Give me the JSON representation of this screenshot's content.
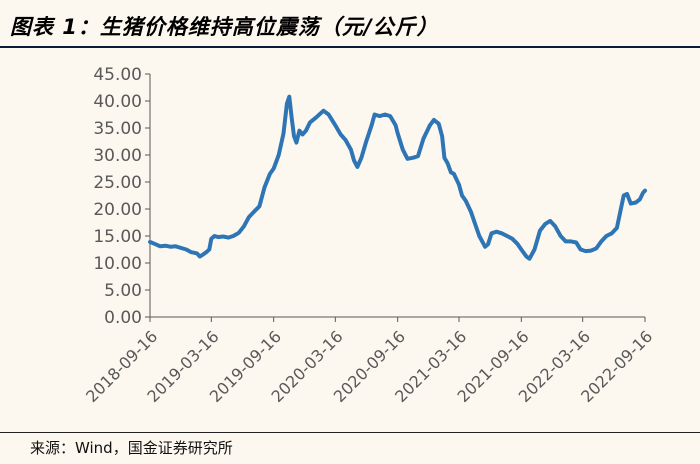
{
  "header": {
    "title": "图表 1：生猪价格维持高位震荡（元/公斤）"
  },
  "footer": {
    "source": "来源：Wind，国金证券研究所"
  },
  "colors": {
    "line": "#2e75b6",
    "axis": "#595959",
    "tick_text": "#595959"
  },
  "chart_data": {
    "type": "line",
    "title": "生猪价格维持高位震荡（元/公斤）",
    "xlabel": "",
    "ylabel": "",
    "ylim": [
      0,
      45
    ],
    "yticks": [
      "0.00",
      "5.00",
      "10.00",
      "15.00",
      "20.00",
      "25.00",
      "30.00",
      "35.00",
      "40.00",
      "45.00"
    ],
    "xticks": [
      "2018-09-16",
      "2019-03-16",
      "2019-09-16",
      "2020-03-16",
      "2020-09-16",
      "2021-03-16",
      "2021-09-16",
      "2022-03-16",
      "2022-09-16"
    ],
    "grid": false,
    "legend": "none",
    "series": [
      {
        "points": [
          [
            "2018-09-16",
            13.9
          ],
          [
            "2018-10-01",
            13.5
          ],
          [
            "2018-10-16",
            13.1
          ],
          [
            "2018-11-01",
            13.2
          ],
          [
            "2018-11-16",
            13.0
          ],
          [
            "2018-12-01",
            13.1
          ],
          [
            "2018-12-16",
            12.8
          ],
          [
            "2019-01-01",
            12.5
          ],
          [
            "2019-01-16",
            12.0
          ],
          [
            "2019-02-01",
            11.8
          ],
          [
            "2019-02-10",
            11.2
          ],
          [
            "2019-02-20",
            11.6
          ],
          [
            "2019-03-01",
            12.0
          ],
          [
            "2019-03-10",
            12.5
          ],
          [
            "2019-03-16",
            14.5
          ],
          [
            "2019-03-25",
            15.0
          ],
          [
            "2019-04-05",
            14.8
          ],
          [
            "2019-04-20",
            14.9
          ],
          [
            "2019-05-05",
            14.7
          ],
          [
            "2019-05-20",
            15.0
          ],
          [
            "2019-06-05",
            15.6
          ],
          [
            "2019-06-20",
            16.8
          ],
          [
            "2019-07-05",
            18.5
          ],
          [
            "2019-07-20",
            19.5
          ],
          [
            "2019-08-05",
            20.5
          ],
          [
            "2019-08-20",
            24.0
          ],
          [
            "2019-09-05",
            26.5
          ],
          [
            "2019-09-16",
            27.5
          ],
          [
            "2019-10-01",
            30.0
          ],
          [
            "2019-10-15",
            34.0
          ],
          [
            "2019-10-25",
            39.5
          ],
          [
            "2019-11-01",
            40.8
          ],
          [
            "2019-11-08",
            37.0
          ],
          [
            "2019-11-15",
            33.5
          ],
          [
            "2019-11-22",
            32.3
          ],
          [
            "2019-12-01",
            34.5
          ],
          [
            "2019-12-10",
            33.8
          ],
          [
            "2019-12-20",
            34.5
          ],
          [
            "2020-01-01",
            36.0
          ],
          [
            "2020-01-20",
            37.0
          ],
          [
            "2020-02-10",
            38.2
          ],
          [
            "2020-02-25",
            37.5
          ],
          [
            "2020-03-16",
            35.5
          ],
          [
            "2020-04-01",
            33.8
          ],
          [
            "2020-04-15",
            32.8
          ],
          [
            "2020-05-01",
            31.0
          ],
          [
            "2020-05-10",
            29.0
          ],
          [
            "2020-05-20",
            27.8
          ],
          [
            "2020-06-01",
            29.5
          ],
          [
            "2020-06-15",
            32.5
          ],
          [
            "2020-07-01",
            35.5
          ],
          [
            "2020-07-10",
            37.5
          ],
          [
            "2020-07-25",
            37.2
          ],
          [
            "2020-08-10",
            37.5
          ],
          [
            "2020-08-25",
            37.2
          ],
          [
            "2020-09-10",
            35.5
          ],
          [
            "2020-09-16",
            34.0
          ],
          [
            "2020-10-01",
            31.0
          ],
          [
            "2020-10-15",
            29.3
          ],
          [
            "2020-11-01",
            29.5
          ],
          [
            "2020-11-15",
            29.8
          ],
          [
            "2020-12-01",
            33.0
          ],
          [
            "2020-12-20",
            35.5
          ],
          [
            "2021-01-01",
            36.5
          ],
          [
            "2021-01-15",
            35.8
          ],
          [
            "2021-01-25",
            33.5
          ],
          [
            "2021-02-01",
            29.5
          ],
          [
            "2021-02-10",
            28.5
          ],
          [
            "2021-02-20",
            26.8
          ],
          [
            "2021-03-01",
            26.5
          ],
          [
            "2021-03-16",
            24.5
          ],
          [
            "2021-03-25",
            22.5
          ],
          [
            "2021-04-05",
            21.5
          ],
          [
            "2021-04-20",
            19.5
          ],
          [
            "2021-05-01",
            17.5
          ],
          [
            "2021-05-15",
            15.0
          ],
          [
            "2021-06-01",
            13.0
          ],
          [
            "2021-06-10",
            13.5
          ],
          [
            "2021-06-20",
            15.5
          ],
          [
            "2021-07-05",
            15.8
          ],
          [
            "2021-07-20",
            15.5
          ],
          [
            "2021-08-05",
            15.0
          ],
          [
            "2021-08-20",
            14.5
          ],
          [
            "2021-09-05",
            13.5
          ],
          [
            "2021-09-16",
            12.5
          ],
          [
            "2021-10-01",
            11.2
          ],
          [
            "2021-10-10",
            10.8
          ],
          [
            "2021-10-25",
            12.5
          ],
          [
            "2021-11-10",
            16.0
          ],
          [
            "2021-11-25",
            17.2
          ],
          [
            "2021-12-10",
            17.8
          ],
          [
            "2021-12-25",
            16.8
          ],
          [
            "2022-01-10",
            15.0
          ],
          [
            "2022-01-25",
            14.0
          ],
          [
            "2022-02-10",
            14.0
          ],
          [
            "2022-02-25",
            13.8
          ],
          [
            "2022-03-10",
            12.5
          ],
          [
            "2022-03-25",
            12.2
          ],
          [
            "2022-04-10",
            12.3
          ],
          [
            "2022-04-25",
            12.7
          ],
          [
            "2022-05-10",
            14.0
          ],
          [
            "2022-05-25",
            15.0
          ],
          [
            "2022-06-10",
            15.5
          ],
          [
            "2022-06-25",
            16.5
          ],
          [
            "2022-07-05",
            19.5
          ],
          [
            "2022-07-15",
            22.5
          ],
          [
            "2022-07-25",
            22.8
          ],
          [
            "2022-08-05",
            21.0
          ],
          [
            "2022-08-20",
            21.2
          ],
          [
            "2022-09-01",
            21.8
          ],
          [
            "2022-09-10",
            23.0
          ],
          [
            "2022-09-16",
            23.4
          ]
        ]
      }
    ]
  }
}
